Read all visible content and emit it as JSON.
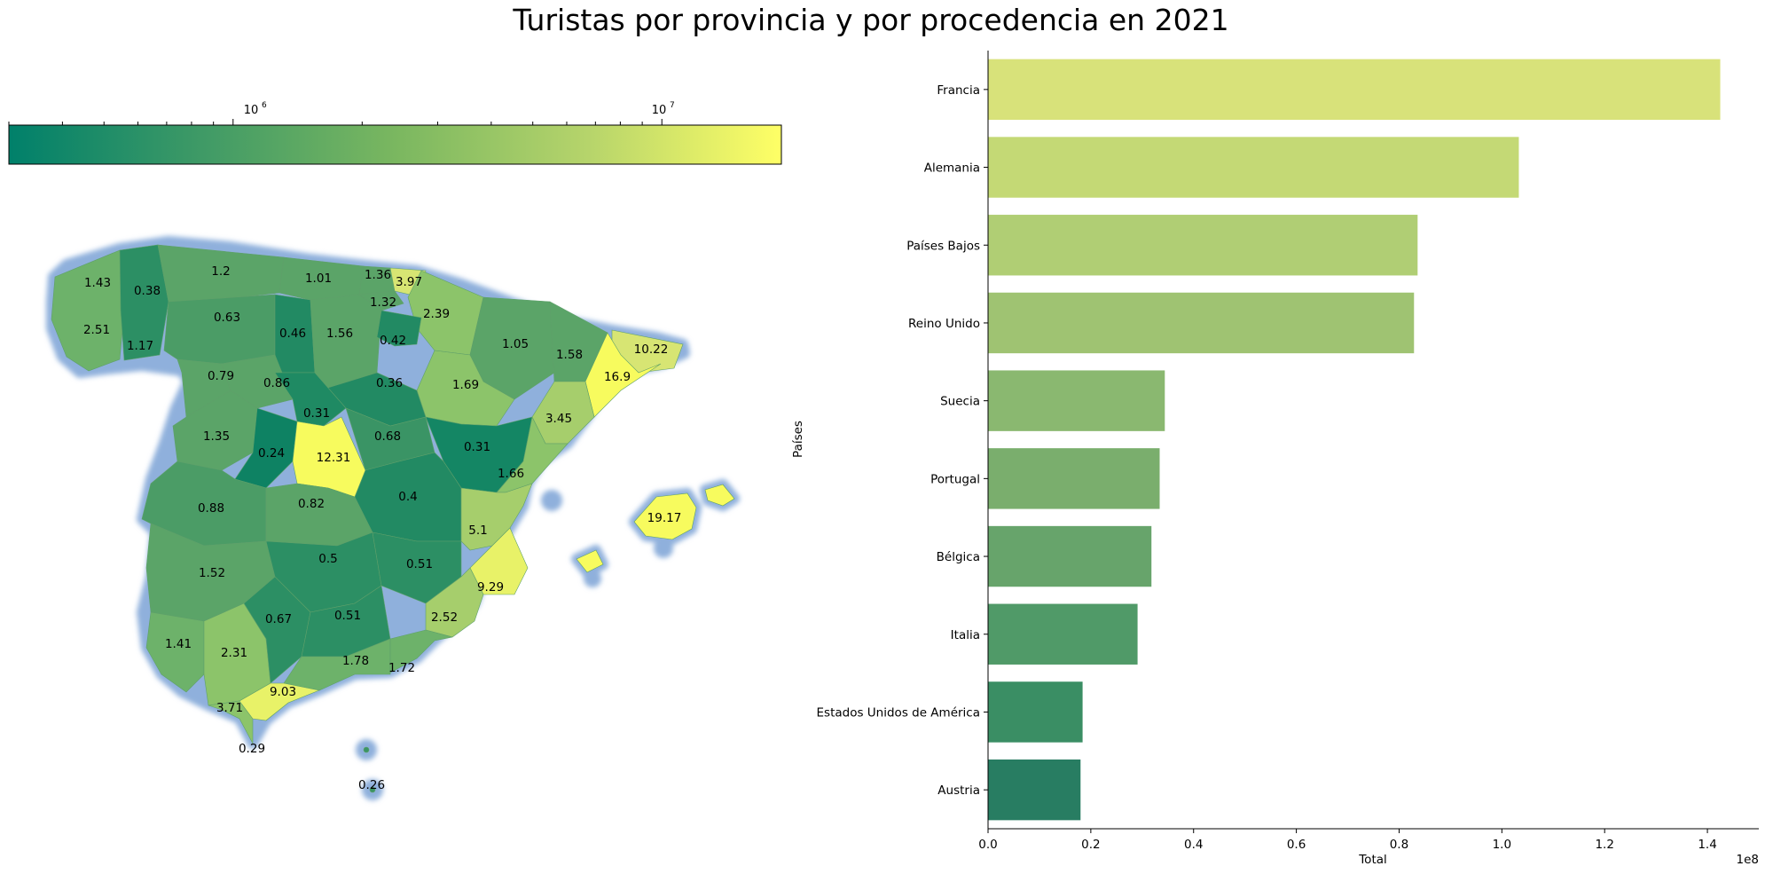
{
  "figure": {
    "title": "Turistas por provincia y por procedencia en 2021"
  },
  "colorbar": {
    "scale": "log",
    "range": [
      300000,
      19000000
    ],
    "colormap": [
      "#00806a",
      "#3f9a66",
      "#7ab760",
      "#b6d46b",
      "#ffff66"
    ],
    "ticks": [
      {
        "value": 1000000,
        "label_base": "10",
        "label_exp": "6"
      },
      {
        "value": 10000000,
        "label_base": "10",
        "label_exp": "7"
      }
    ]
  },
  "chart_data": [
    {
      "type": "heatmap",
      "description_kind": "choropleth map of Spain by province",
      "values_units": "millions (labels as printed)",
      "labels": [
        {
          "id": "p01",
          "label": "1.43",
          "value": 1.43
        },
        {
          "id": "p02",
          "label": "0.38",
          "value": 0.38
        },
        {
          "id": "p03",
          "label": "1.2",
          "value": 1.2
        },
        {
          "id": "p04",
          "label": "1.01",
          "value": 1.01
        },
        {
          "id": "p05",
          "label": "1.36",
          "value": 1.36
        },
        {
          "id": "p06",
          "label": "3.97",
          "value": 3.97
        },
        {
          "id": "p07",
          "label": "1.32",
          "value": 1.32
        },
        {
          "id": "p08",
          "label": "2.39",
          "value": 2.39
        },
        {
          "id": "p09",
          "label": "2.51",
          "value": 2.51
        },
        {
          "id": "p10",
          "label": "1.17",
          "value": 1.17
        },
        {
          "id": "p11",
          "label": "0.63",
          "value": 0.63
        },
        {
          "id": "p12",
          "label": "0.46",
          "value": 0.46
        },
        {
          "id": "p13",
          "label": "1.56",
          "value": 1.56
        },
        {
          "id": "p14",
          "label": "0.42",
          "value": 0.42
        },
        {
          "id": "p15",
          "label": "1.05",
          "value": 1.05
        },
        {
          "id": "p16",
          "label": "1.58",
          "value": 1.58
        },
        {
          "id": "p17",
          "label": "10.22",
          "value": 10.22
        },
        {
          "id": "p18",
          "label": "16.9",
          "value": 16.9
        },
        {
          "id": "p19",
          "label": "0.79",
          "value": 0.79
        },
        {
          "id": "p20",
          "label": "0.86",
          "value": 0.86
        },
        {
          "id": "p21",
          "label": "0.36",
          "value": 0.36
        },
        {
          "id": "p22",
          "label": "1.69",
          "value": 1.69
        },
        {
          "id": "p23",
          "label": "0.31",
          "value": 0.31
        },
        {
          "id": "p24",
          "label": "3.45",
          "value": 3.45
        },
        {
          "id": "p25",
          "label": "1.35",
          "value": 1.35
        },
        {
          "id": "p26",
          "label": "0.24",
          "value": 0.24
        },
        {
          "id": "p27",
          "label": "12.31",
          "value": 12.31
        },
        {
          "id": "p28",
          "label": "0.68",
          "value": 0.68
        },
        {
          "id": "p29",
          "label": "0.31",
          "value": 0.31
        },
        {
          "id": "p30",
          "label": "1.66",
          "value": 1.66
        },
        {
          "id": "p31",
          "label": "0.88",
          "value": 0.88
        },
        {
          "id": "p32",
          "label": "0.82",
          "value": 0.82
        },
        {
          "id": "p33",
          "label": "0.4",
          "value": 0.4
        },
        {
          "id": "p34",
          "label": "5.1",
          "value": 5.1
        },
        {
          "id": "p35",
          "label": "19.17",
          "value": 19.17
        },
        {
          "id": "p36",
          "label": "1.52",
          "value": 1.52
        },
        {
          "id": "p37",
          "label": "0.5",
          "value": 0.5
        },
        {
          "id": "p38",
          "label": "0.51",
          "value": 0.51
        },
        {
          "id": "p39",
          "label": "9.29",
          "value": 9.29
        },
        {
          "id": "p40",
          "label": "0.67",
          "value": 0.67
        },
        {
          "id": "p41",
          "label": "0.51",
          "value": 0.51
        },
        {
          "id": "p42",
          "label": "2.52",
          "value": 2.52
        },
        {
          "id": "p43",
          "label": "1.41",
          "value": 1.41
        },
        {
          "id": "p44",
          "label": "2.31",
          "value": 2.31
        },
        {
          "id": "p45",
          "label": "1.78",
          "value": 1.78
        },
        {
          "id": "p46",
          "label": "1.72",
          "value": 1.72
        },
        {
          "id": "p47",
          "label": "3.71",
          "value": 3.71
        },
        {
          "id": "p48",
          "label": "9.03",
          "value": 9.03
        },
        {
          "id": "p49",
          "label": "0.29",
          "value": 0.29
        },
        {
          "id": "p50",
          "label": "0.26",
          "value": 0.26
        }
      ]
    },
    {
      "type": "bar",
      "orientation": "horizontal",
      "xlabel": "Total",
      "ylabel": "Países",
      "offset_text": "1e8",
      "xlim": [
        0,
        1.5
      ],
      "xticks": [
        0.0,
        0.2,
        0.4,
        0.6,
        0.8,
        1.0,
        1.2,
        1.4
      ],
      "xtick_labels": [
        "0.0",
        "0.2",
        "0.4",
        "0.6",
        "0.8",
        "1.0",
        "1.2",
        "1.4"
      ],
      "grid": false,
      "categories": [
        "Francia",
        "Alemania",
        "Países Bajos",
        "Reino Unido",
        "Suecia",
        "Portugal",
        "Bélgica",
        "Italia",
        "Estados Unidos de América",
        "Austria"
      ],
      "values": [
        1.425,
        1.033,
        0.836,
        0.829,
        0.344,
        0.334,
        0.318,
        0.291,
        0.184,
        0.18
      ],
      "colors": [
        "#d8e27a",
        "#c4d975",
        "#b0ce74",
        "#9fc372",
        "#8ab870",
        "#7aae6d",
        "#67a46b",
        "#509a68",
        "#3a8e64",
        "#287d62"
      ]
    }
  ]
}
